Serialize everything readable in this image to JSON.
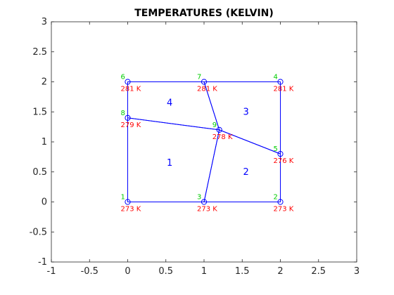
{
  "chart_data": {
    "type": "scatter",
    "title": "TEMPERATURES (KELVIN)",
    "xlabel": "",
    "ylabel": "",
    "xlim": [
      -1,
      3
    ],
    "ylim": [
      -1,
      3
    ],
    "grid": false,
    "xticks": [
      "-1",
      "-0.5",
      "0",
      "0.5",
      "1",
      "1.5",
      "2",
      "2.5",
      "3"
    ],
    "yticks": [
      "-1",
      "-0.5",
      "0",
      "0.5",
      "1",
      "1.5",
      "2",
      "2.5",
      "3"
    ],
    "nodes": [
      {
        "id": "1",
        "x": 0,
        "y": 0,
        "temp": "273 K"
      },
      {
        "id": "2",
        "x": 2,
        "y": 0,
        "temp": "273 K"
      },
      {
        "id": "3",
        "x": 1,
        "y": 0,
        "temp": "273 K"
      },
      {
        "id": "4",
        "x": 2,
        "y": 2,
        "temp": "281 K"
      },
      {
        "id": "5",
        "x": 2,
        "y": 0.8,
        "temp": "276 K"
      },
      {
        "id": "6",
        "x": 0,
        "y": 2,
        "temp": "281 K"
      },
      {
        "id": "7",
        "x": 1,
        "y": 2,
        "temp": "281 K"
      },
      {
        "id": "8",
        "x": 0,
        "y": 1.4,
        "temp": "279 K"
      },
      {
        "id": "9",
        "x": 1.2,
        "y": 1.2,
        "temp": "278 K"
      }
    ],
    "elements": [
      {
        "label": "1",
        "nodes": [
          "1",
          "3",
          "9",
          "8"
        ]
      },
      {
        "label": "2",
        "nodes": [
          "3",
          "2",
          "5",
          "9"
        ]
      },
      {
        "label": "3",
        "nodes": [
          "9",
          "5",
          "4",
          "7"
        ]
      },
      {
        "label": "4",
        "nodes": [
          "8",
          "9",
          "7",
          "6"
        ]
      }
    ],
    "colors": {
      "mesh": "#0000ff",
      "node_id": "#00cc00",
      "temperature": "#ff0000",
      "element_label": "#0000ff",
      "axis": "#262626"
    }
  }
}
